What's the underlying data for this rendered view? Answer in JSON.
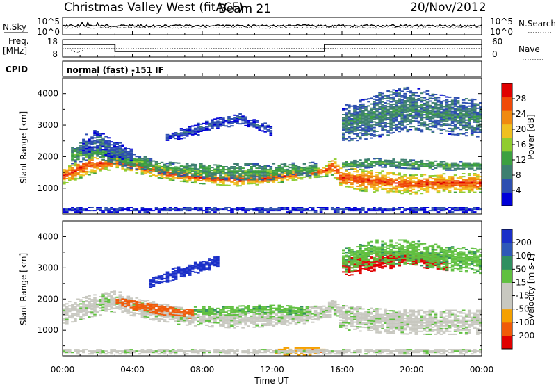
{
  "header": {
    "station": "Christmas Valley West (fitACF)",
    "beam": "Beam 21",
    "date": "20/Nov/2012"
  },
  "noise_panel": {
    "left_label": "N.Sky",
    "right_label": "N.Search",
    "left_ticks": [
      "10^5",
      "10^0"
    ],
    "right_ticks": [
      "10^5",
      "10^0"
    ]
  },
  "freq_panel": {
    "left_label_line1": "Freq.",
    "left_label_line2": "[MHz]",
    "right_label": "Nave",
    "left_ticks": [
      "18",
      "8"
    ],
    "right_ticks": [
      "60",
      "0"
    ]
  },
  "cpid": {
    "label": "CPID",
    "value": "normal (fast) -151 IF"
  },
  "colors": {
    "power": [
      "#0000d8",
      "#2d4fb0",
      "#3d7f70",
      "#3ca040",
      "#90cc30",
      "#f0c020",
      "#f08a10",
      "#f04a08",
      "#e00000"
    ],
    "velocity": [
      "#e00000",
      "#f05a08",
      "#f5a000",
      "#c8c8c0",
      "#c8c8c0",
      "#60c040",
      "#2f8f60",
      "#2e58b8",
      "#1a2fc8"
    ],
    "line": "#000000"
  },
  "chart_data": [
    {
      "type": "heatmap",
      "name": "power",
      "ylabel": "Slant Range [km]",
      "y_ticks": [
        "1000",
        "2000",
        "3000",
        "4000"
      ],
      "y_tick_values": [
        1000,
        2000,
        3000,
        4000
      ],
      "ylim": [
        180,
        4500
      ],
      "xlim_hours": [
        0,
        24
      ],
      "colorbar_label": "Power [dB]",
      "colorbar_ticks": [
        "4",
        "8",
        "12",
        "16",
        "20",
        "24",
        "28"
      ],
      "colorbar_range": [
        0,
        30
      ],
      "bands": [
        {
          "t": [
            0,
            1.5,
            3,
            4.5,
            6,
            8,
            10,
            12,
            14,
            15,
            15.5,
            16,
            18,
            20,
            22,
            24
          ],
          "center": [
            1350,
            1700,
            1800,
            1650,
            1450,
            1300,
            1250,
            1300,
            1450,
            1500,
            1700,
            1300,
            1200,
            1100,
            1150,
            1150
          ],
          "half": [
            250,
            300,
            200,
            220,
            200,
            180,
            200,
            180,
            150,
            150,
            300,
            350,
            350,
            300,
            300,
            300
          ],
          "level": 26
        },
        {
          "t": [
            0.5,
            2,
            3.5,
            6,
            9,
            12,
            14.5
          ],
          "center": [
            2000,
            2150,
            1900,
            1600,
            1500,
            1500,
            1600
          ],
          "half": [
            250,
            200,
            250,
            200,
            250,
            250,
            200
          ],
          "level": 12
        },
        {
          "t": [
            1,
            2,
            3,
            4
          ],
          "center": [
            2300,
            2500,
            2200,
            2000
          ],
          "half": [
            300,
            350,
            300,
            200
          ],
          "level": 6
        },
        {
          "t": [
            6,
            8,
            10,
            12
          ],
          "center": [
            2600,
            2900,
            3200,
            2800
          ],
          "half": [
            150,
            200,
            200,
            150
          ],
          "level": 5
        },
        {
          "t": [
            16,
            18,
            20,
            22,
            24
          ],
          "center": [
            1700,
            1800,
            1750,
            1700,
            1700
          ],
          "half": [
            150,
            150,
            150,
            150,
            150
          ],
          "level": 12
        },
        {
          "t": [
            16,
            18,
            20,
            22,
            24
          ],
          "center": [
            3000,
            3300,
            3500,
            3300,
            3200
          ],
          "half": [
            600,
            700,
            700,
            600,
            600
          ],
          "level": 9
        },
        {
          "t": [
            0,
            4,
            8,
            12,
            16,
            20,
            24
          ],
          "center": [
            300,
            300,
            300,
            300,
            300,
            300,
            300
          ],
          "half": [
            80,
            80,
            80,
            80,
            80,
            80,
            80
          ],
          "level": 4
        }
      ]
    },
    {
      "type": "heatmap",
      "name": "velocity",
      "ylabel": "Slant Range [km]",
      "y_ticks": [
        "1000",
        "2000",
        "3000",
        "4000"
      ],
      "y_tick_values": [
        1000,
        2000,
        3000,
        4000
      ],
      "ylim": [
        180,
        4500
      ],
      "xlim_hours": [
        0,
        24
      ],
      "xlabel": "Time UT",
      "x_ticks": [
        "00:00",
        "04:00",
        "08:00",
        "12:00",
        "16:00",
        "20:00",
        "00:00"
      ],
      "x_tick_hours": [
        0,
        4,
        8,
        12,
        16,
        20,
        24
      ],
      "colorbar_label": "Velocity [m s-1]",
      "colorbar_ticks": [
        "-200",
        "-100",
        "-50",
        "-15",
        "15",
        "50",
        "100",
        "200"
      ],
      "bands": [
        {
          "t": [
            0,
            1.5,
            3,
            4.5,
            6,
            8,
            10,
            12,
            14,
            15,
            15.5,
            16,
            18,
            20,
            22,
            24
          ],
          "center": [
            1500,
            1750,
            1900,
            1700,
            1500,
            1350,
            1300,
            1350,
            1450,
            1550,
            1800,
            1400,
            1300,
            1250,
            1250,
            1250
          ],
          "half": [
            350,
            350,
            350,
            300,
            300,
            250,
            250,
            250,
            250,
            250,
            350,
            400,
            400,
            400,
            400,
            400
          ],
          "level": 0
        },
        {
          "t": [
            3,
            4.5,
            6,
            7.5
          ],
          "center": [
            1900,
            1750,
            1600,
            1500
          ],
          "half": [
            150,
            150,
            150,
            150
          ],
          "level": -120
        },
        {
          "t": [
            7.5,
            9,
            11,
            12.5,
            14
          ],
          "center": [
            1600,
            1600,
            1650,
            1650,
            1600
          ],
          "half": [
            150,
            150,
            150,
            150,
            150
          ],
          "level": 35
        },
        {
          "t": [
            12,
            13,
            14,
            15
          ],
          "center": [
            300,
            300,
            300,
            300
          ],
          "half": [
            120,
            120,
            120,
            120
          ],
          "level": -60
        },
        {
          "t": [
            16,
            18,
            20,
            22
          ],
          "center": [
            3000,
            3200,
            3300,
            3100
          ],
          "half": [
            300,
            300,
            250,
            250
          ],
          "level": -200
        },
        {
          "t": [
            16,
            18,
            20,
            22,
            24
          ],
          "center": [
            3200,
            3500,
            3500,
            3300,
            3200
          ],
          "half": [
            400,
            400,
            400,
            400,
            400
          ],
          "level": 35
        },
        {
          "t": [
            5,
            7,
            9
          ],
          "center": [
            2500,
            2900,
            3200
          ],
          "half": [
            150,
            200,
            200
          ],
          "level": 200
        },
        {
          "t": [
            0,
            4,
            8,
            12,
            16,
            20,
            24
          ],
          "center": [
            300,
            300,
            300,
            300,
            300,
            300,
            300
          ],
          "half": [
            80,
            80,
            80,
            80,
            80,
            80,
            80
          ],
          "level": 0
        }
      ]
    }
  ]
}
